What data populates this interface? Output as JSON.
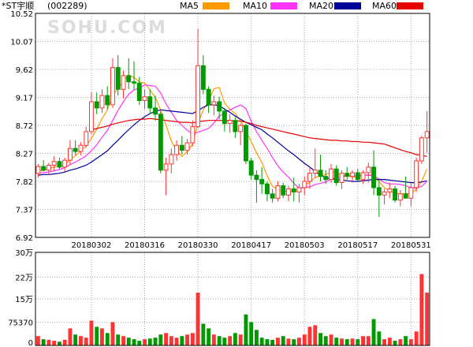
{
  "header": {
    "stock_name": "*ST宇顺",
    "stock_code": "(002289)",
    "watermark": "SOHU.COM"
  },
  "legend": [
    {
      "label": "MA5",
      "color": "#ff9900"
    },
    {
      "label": "MA10",
      "color": "#ff33ff"
    },
    {
      "label": "MA20",
      "color": "#000099"
    },
    {
      "label": "MA60",
      "color": "#e80000"
    }
  ],
  "colors": {
    "up": "#ff3333",
    "down": "#009900",
    "grid": "#aaaaaa",
    "axis": "#000000"
  },
  "chart_data": [
    {
      "type": "candlestick",
      "title": "",
      "y_ticks": [
        10.52,
        10.07,
        9.62,
        9.17,
        8.72,
        8.27,
        7.82,
        7.37,
        6.92
      ],
      "ylim": [
        6.92,
        10.52
      ],
      "x_ticks": [
        {
          "index": 10,
          "label": "20180302"
        },
        {
          "index": 20,
          "label": "20180316"
        },
        {
          "index": 30,
          "label": "20180330"
        },
        {
          "index": 40,
          "label": "20180417"
        },
        {
          "index": 50,
          "label": "20180503"
        },
        {
          "index": 60,
          "label": "20180517"
        },
        {
          "index": 70,
          "label": "20180531"
        }
      ],
      "candles": [
        [
          7.95,
          8.1,
          7.88,
          8.06
        ],
        [
          8.06,
          8.16,
          7.98,
          8.0
        ],
        [
          8.0,
          8.12,
          7.92,
          8.08
        ],
        [
          8.08,
          8.22,
          7.98,
          8.14
        ],
        [
          8.14,
          8.2,
          8.02,
          8.05
        ],
        [
          8.05,
          8.2,
          7.98,
          8.16
        ],
        [
          8.16,
          8.48,
          8.08,
          8.35
        ],
        [
          8.35,
          8.48,
          8.24,
          8.3
        ],
        [
          8.3,
          8.45,
          8.24,
          8.4
        ],
        [
          8.4,
          8.7,
          8.36,
          8.62
        ],
        [
          8.62,
          9.25,
          8.58,
          9.1
        ],
        [
          9.1,
          9.25,
          8.9,
          9.0
        ],
        [
          9.0,
          9.3,
          8.92,
          9.2
        ],
        [
          9.2,
          9.35,
          8.98,
          9.05
        ],
        [
          9.05,
          9.8,
          9.0,
          9.65
        ],
        [
          9.65,
          9.85,
          9.2,
          9.3
        ],
        [
          9.3,
          9.6,
          9.15,
          9.52
        ],
        [
          9.52,
          9.8,
          9.3,
          9.42
        ],
        [
          9.42,
          9.75,
          9.3,
          9.4
        ],
        [
          9.4,
          9.5,
          9.05,
          9.12
        ],
        [
          9.12,
          9.3,
          8.98,
          9.18
        ],
        [
          9.18,
          9.3,
          8.92,
          9.0
        ],
        [
          9.0,
          9.2,
          8.8,
          8.9
        ],
        [
          8.9,
          8.95,
          7.95,
          8.0
        ],
        [
          8.0,
          8.2,
          7.6,
          8.1
        ],
        [
          8.1,
          8.35,
          7.95,
          8.25
        ],
        [
          8.25,
          8.48,
          8.15,
          8.4
        ],
        [
          8.4,
          8.55,
          8.25,
          8.32
        ],
        [
          8.32,
          8.5,
          8.25,
          8.44
        ],
        [
          8.44,
          8.8,
          8.38,
          8.7
        ],
        [
          8.7,
          10.27,
          8.68,
          9.68
        ],
        [
          9.68,
          9.85,
          9.22,
          9.3
        ],
        [
          9.3,
          9.35,
          8.92,
          9.05
        ],
        [
          9.05,
          9.2,
          8.88,
          9.1
        ],
        [
          9.1,
          9.18,
          8.82,
          8.95
        ],
        [
          8.95,
          9.0,
          8.62,
          8.75
        ],
        [
          8.75,
          8.9,
          8.6,
          8.8
        ],
        [
          8.8,
          8.85,
          8.52,
          8.62
        ],
        [
          8.62,
          8.75,
          8.4,
          8.72
        ],
        [
          8.72,
          8.75,
          8.1,
          8.15
        ],
        [
          8.15,
          8.2,
          7.85,
          7.92
        ],
        [
          7.92,
          8.0,
          7.48,
          7.85
        ],
        [
          7.85,
          8.05,
          7.62,
          7.78
        ],
        [
          7.78,
          7.82,
          7.5,
          7.62
        ],
        [
          7.62,
          7.7,
          7.48,
          7.55
        ],
        [
          7.55,
          7.82,
          7.5,
          7.75
        ],
        [
          7.75,
          7.8,
          7.55,
          7.6
        ],
        [
          7.6,
          7.75,
          7.5,
          7.7
        ],
        [
          7.7,
          7.88,
          7.5,
          7.65
        ],
        [
          7.65,
          7.78,
          7.48,
          7.72
        ],
        [
          7.72,
          7.9,
          7.6,
          7.82
        ],
        [
          7.82,
          8.05,
          7.7,
          7.95
        ],
        [
          7.95,
          8.35,
          7.88,
          8.0
        ],
        [
          8.0,
          8.25,
          7.82,
          7.9
        ],
        [
          7.9,
          8.0,
          7.78,
          7.85
        ],
        [
          7.85,
          8.1,
          7.8,
          8.02
        ],
        [
          8.02,
          8.08,
          7.75,
          7.8
        ],
        [
          7.8,
          8.0,
          7.7,
          7.95
        ],
        [
          7.95,
          8.05,
          7.85,
          7.9
        ],
        [
          7.9,
          8.0,
          7.8,
          7.96
        ],
        [
          7.96,
          8.02,
          7.82,
          7.85
        ],
        [
          7.85,
          8.0,
          7.78,
          7.96
        ],
        [
          7.96,
          8.12,
          7.8,
          8.05
        ],
        [
          8.05,
          8.32,
          7.6,
          7.72
        ],
        [
          7.72,
          7.85,
          7.25,
          7.6
        ],
        [
          7.6,
          7.7,
          7.45,
          7.65
        ],
        [
          7.65,
          7.8,
          7.55,
          7.7
        ],
        [
          7.7,
          7.75,
          7.48,
          7.52
        ],
        [
          7.52,
          7.68,
          7.42,
          7.62
        ],
        [
          7.62,
          7.9,
          7.55,
          7.55
        ],
        [
          7.55,
          7.8,
          7.42,
          7.72
        ],
        [
          7.72,
          8.2,
          7.65,
          8.15
        ],
        [
          8.15,
          8.55,
          8.1,
          8.52
        ],
        [
          8.52,
          8.95,
          8.28,
          8.62
        ]
      ],
      "ma5": [
        7.98,
        8.0,
        8.03,
        8.05,
        8.07,
        8.09,
        8.17,
        8.23,
        8.31,
        8.39,
        8.51,
        8.66,
        8.83,
        8.97,
        9.2,
        9.32,
        9.43,
        9.53,
        9.49,
        9.42,
        9.4,
        9.29,
        9.17,
        8.97,
        8.73,
        8.47,
        8.31,
        8.22,
        8.3,
        8.42,
        8.75,
        8.97,
        9.11,
        9.31,
        9.33,
        9.08,
        8.98,
        8.91,
        8.79,
        8.64,
        8.46,
        8.28,
        8.12,
        7.91,
        7.74,
        7.69,
        7.66,
        7.66,
        7.66,
        7.68,
        7.75,
        7.81,
        7.88,
        7.91,
        7.93,
        7.97,
        7.96,
        7.91,
        7.91,
        7.89,
        7.89,
        7.91,
        7.93,
        7.91,
        7.82,
        7.72,
        7.66,
        7.64,
        7.62,
        7.62,
        7.63,
        7.69,
        7.82,
        8.02
      ],
      "ma10": [
        7.95,
        7.96,
        7.97,
        7.99,
        8.01,
        8.04,
        8.09,
        8.13,
        8.18,
        8.23,
        8.31,
        8.41,
        8.53,
        8.64,
        8.8,
        8.96,
        9.1,
        9.22,
        9.29,
        9.32,
        9.37,
        9.36,
        9.35,
        9.24,
        9.07,
        8.93,
        8.8,
        8.72,
        8.64,
        8.58,
        8.61,
        8.64,
        8.67,
        8.76,
        8.87,
        8.92,
        8.97,
        9.01,
        9.05,
        8.99,
        8.79,
        8.62,
        8.48,
        8.35,
        8.2,
        8.07,
        7.97,
        7.89,
        7.79,
        7.71,
        7.72,
        7.73,
        7.77,
        7.79,
        7.81,
        7.86,
        7.88,
        7.89,
        7.91,
        7.91,
        7.91,
        7.92,
        7.92,
        7.91,
        7.86,
        7.8,
        7.78,
        7.78,
        7.77,
        7.75,
        7.72,
        7.71,
        7.74,
        7.82
      ],
      "ma20": [
        7.92,
        7.93,
        7.93,
        7.94,
        7.95,
        7.97,
        8.0,
        8.02,
        8.05,
        8.08,
        8.13,
        8.19,
        8.25,
        8.31,
        8.4,
        8.48,
        8.57,
        8.65,
        8.73,
        8.8,
        8.86,
        8.91,
        8.95,
        8.97,
        8.96,
        8.95,
        8.94,
        8.93,
        8.92,
        8.91,
        8.96,
        9.01,
        9.05,
        9.05,
        9.04,
        8.98,
        8.93,
        8.87,
        8.82,
        8.77,
        8.73,
        8.69,
        8.65,
        8.58,
        8.52,
        8.45,
        8.38,
        8.31,
        8.25,
        8.18,
        8.11,
        8.05,
        7.98,
        7.92,
        7.88,
        7.86,
        7.85,
        7.84,
        7.83,
        7.82,
        7.82,
        7.83,
        7.84,
        7.85,
        7.85,
        7.85,
        7.84,
        7.83,
        7.82,
        7.81,
        7.8,
        7.8,
        7.81,
        7.83
      ],
      "ma60": [
        null,
        null,
        null,
        null,
        null,
        null,
        null,
        null,
        null,
        null,
        8.65,
        8.67,
        8.69,
        8.71,
        8.74,
        8.76,
        8.78,
        8.8,
        8.81,
        8.82,
        8.82,
        8.83,
        8.82,
        8.81,
        8.8,
        8.79,
        8.78,
        8.77,
        8.77,
        8.76,
        8.78,
        8.79,
        8.8,
        8.8,
        8.8,
        8.8,
        8.8,
        8.79,
        8.79,
        8.77,
        8.75,
        8.72,
        8.7,
        8.68,
        8.66,
        8.64,
        8.62,
        8.6,
        8.58,
        8.56,
        8.54,
        8.52,
        8.51,
        8.5,
        8.49,
        8.48,
        8.48,
        8.47,
        8.47,
        8.46,
        8.46,
        8.45,
        8.45,
        8.44,
        8.43,
        8.42,
        8.39,
        8.36,
        8.33,
        8.3,
        8.28,
        8.25,
        8.24,
        8.22
      ]
    },
    {
      "type": "bar",
      "title": "",
      "y_ticks": [
        {
          "value": 300000,
          "label": "30万"
        },
        {
          "value": 220000,
          "label": "22万"
        },
        {
          "value": 150000,
          "label": "15万"
        },
        {
          "value": 75370,
          "label": "75370"
        },
        {
          "value": 0,
          "label": "0"
        }
      ],
      "ylim": [
        0,
        300000
      ],
      "volumes": [
        30000,
        20000,
        18000,
        15000,
        12000,
        18000,
        55000,
        35000,
        30000,
        25000,
        80000,
        60000,
        55000,
        40000,
        75000,
        35000,
        30000,
        25000,
        20000,
        15000,
        20000,
        22000,
        25000,
        35000,
        40000,
        30000,
        25000,
        30000,
        35000,
        40000,
        170000,
        70000,
        55000,
        35000,
        30000,
        25000,
        30000,
        40000,
        35000,
        100000,
        75000,
        50000,
        25000,
        20000,
        18000,
        25000,
        30000,
        22000,
        20000,
        25000,
        35000,
        60000,
        65000,
        40000,
        30000,
        35000,
        25000,
        22000,
        20000,
        22000,
        20000,
        30000,
        30000,
        85000,
        45000,
        20000,
        25000,
        15000,
        20000,
        30000,
        20000,
        45000,
        230000,
        170000
      ]
    }
  ]
}
